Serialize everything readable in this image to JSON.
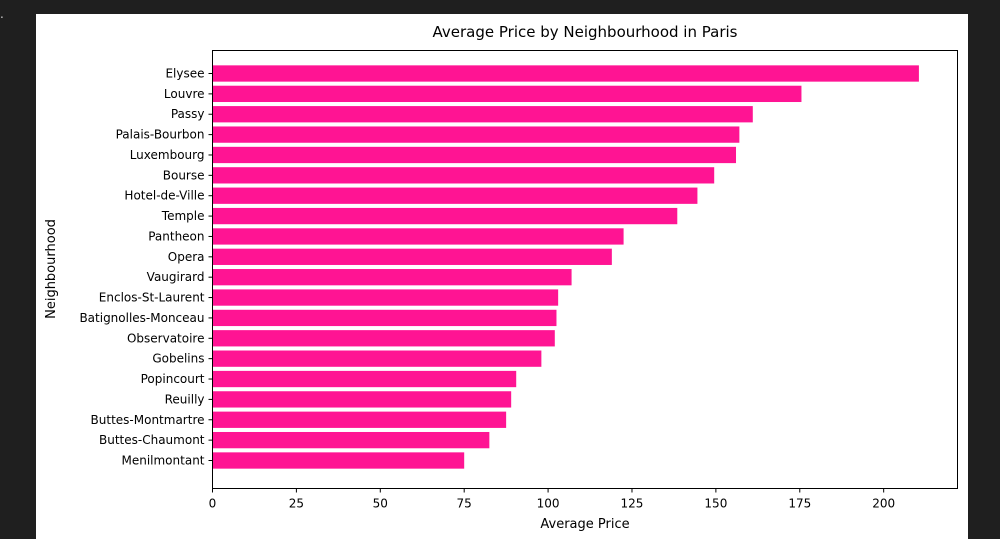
{
  "edge_mark": ".",
  "chart_data": {
    "type": "bar",
    "orientation": "horizontal",
    "title": "Average Price by Neighbourhood in Paris",
    "xlabel": "Average Price",
    "ylabel": "Neighbourhood",
    "xlim": [
      0,
      222
    ],
    "xticks": [
      0,
      25,
      50,
      75,
      100,
      125,
      150,
      175,
      200
    ],
    "bar_color": "#ff1493",
    "categories": [
      "Elysee",
      "Louvre",
      "Passy",
      "Palais-Bourbon",
      "Luxembourg",
      "Bourse",
      "Hotel-de-Ville",
      "Temple",
      "Pantheon",
      "Opera",
      "Vaugirard",
      "Enclos-St-Laurent",
      "Batignolles-Monceau",
      "Observatoire",
      "Gobelins",
      "Popincourt",
      "Reuilly",
      "Buttes-Montmartre",
      "Buttes-Chaumont",
      "Menilmontant"
    ],
    "values": [
      210.5,
      175.5,
      161,
      157,
      156,
      149.5,
      144.5,
      138.5,
      122.5,
      119,
      107,
      103,
      102.5,
      102,
      98,
      90.5,
      89,
      87.5,
      82.5,
      75
    ],
    "grid": false,
    "legend": "none"
  }
}
